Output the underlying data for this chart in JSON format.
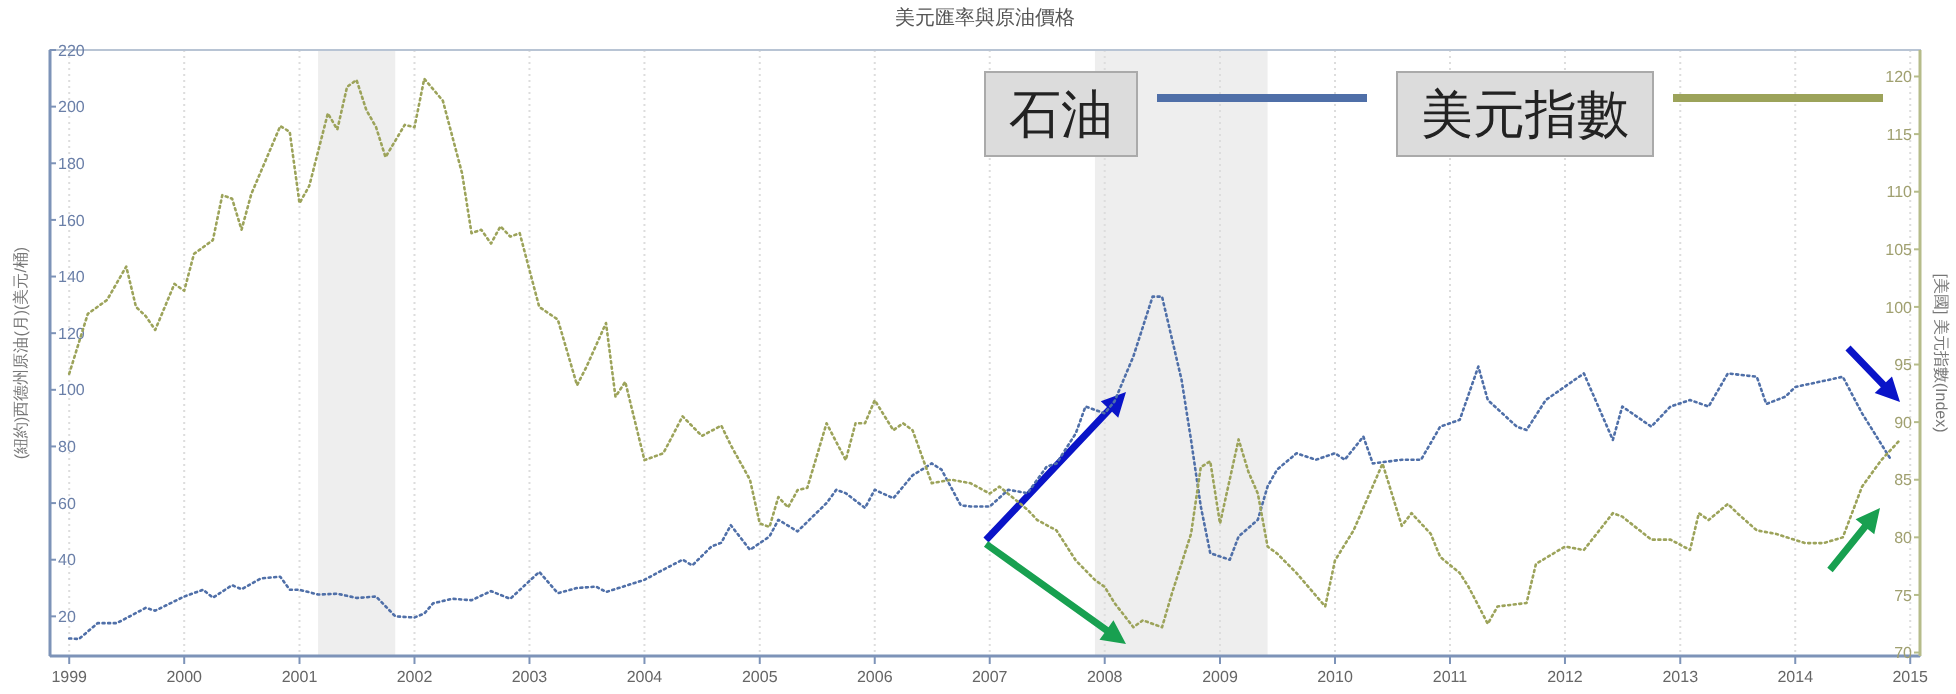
{
  "chart_data": {
    "type": "line",
    "title": "美元匯率與原油價格",
    "ylabel": "(紐約)西德州原油(月)(美元/桶)",
    "y2label": "[美國] 美元指數(Index)",
    "xlim": [
      "1998-11",
      "2015-02"
    ],
    "xticks": [
      "1999",
      "2000",
      "2001",
      "2002",
      "2003",
      "2004",
      "2005",
      "2006",
      "2007",
      "2008",
      "2009",
      "2010",
      "2011",
      "2012",
      "2013",
      "2014",
      "2015"
    ],
    "ylim": [
      6,
      220
    ],
    "yticks": [
      20,
      40,
      60,
      80,
      100,
      120,
      140,
      160,
      180,
      200,
      220
    ],
    "y2lim": [
      69.7,
      122.3
    ],
    "y2ticks": [
      70,
      75,
      80,
      85,
      90,
      95,
      100,
      105,
      110,
      115,
      120
    ],
    "grid": "x",
    "legend": "top",
    "line_style": "dotted",
    "marker": "none",
    "bands": [
      {
        "axis": "x",
        "from": "2001-03",
        "to": "2001-11",
        "color": "#eeeeee"
      },
      {
        "axis": "x",
        "from": "2007-12",
        "to": "2009-06",
        "color": "#eeeeee"
      }
    ],
    "series": [
      {
        "name": "石油",
        "color": "#4f6fa8",
        "x": [
          "1999-01",
          "1999-02",
          "1999-04",
          "1999-06",
          "1999-09",
          "1999-10",
          "2000-01",
          "2000-03",
          "2000-04",
          "2000-06",
          "2000-07",
          "2000-09",
          "2000-11",
          "2000-12",
          "2001-01",
          "2001-03",
          "2001-05",
          "2001-07",
          "2001-09",
          "2001-11",
          "2002-01",
          "2002-02",
          "2002-03",
          "2002-05",
          "2002-07",
          "2002-09",
          "2002-11",
          "2003-02",
          "2003-04",
          "2003-06",
          "2003-08",
          "2003-09",
          "2004-01",
          "2004-03",
          "2004-05",
          "2004-06",
          "2004-08",
          "2004-09",
          "2004-10",
          "2004-12",
          "2005-02",
          "2005-03",
          "2005-05",
          "2005-08",
          "2005-09",
          "2005-10",
          "2005-12",
          "2006-01",
          "2006-03",
          "2006-05",
          "2006-07",
          "2006-08",
          "2006-10",
          "2006-11",
          "2007-01",
          "2007-03",
          "2007-05",
          "2007-07",
          "2007-08",
          "2007-10",
          "2007-11",
          "2008-01",
          "2008-02",
          "2008-04",
          "2008-06",
          "2008-07",
          "2008-09",
          "2008-10",
          "2008-11",
          "2008-12",
          "2009-02",
          "2009-03",
          "2009-05",
          "2009-06",
          "2009-07",
          "2009-09",
          "2009-11",
          "2010-01",
          "2010-02",
          "2010-04",
          "2010-05",
          "2010-08",
          "2010-10",
          "2010-12",
          "2011-02",
          "2011-04",
          "2011-05",
          "2011-08",
          "2011-09",
          "2011-11",
          "2012-03",
          "2012-06",
          "2012-07",
          "2012-10",
          "2012-12",
          "2013-02",
          "2013-04",
          "2013-06",
          "2013-09",
          "2013-10",
          "2013-12",
          "2014-01",
          "2014-06",
          "2014-08",
          "2014-11"
        ],
        "values": [
          12.2,
          12,
          17.6,
          17.6,
          23,
          22,
          27,
          29.4,
          26.6,
          31,
          29.6,
          33.4,
          34,
          29.4,
          29.4,
          27.7,
          28,
          26.5,
          27,
          20,
          19.6,
          21,
          24.6,
          26.2,
          25.7,
          28.9,
          26.2,
          35.7,
          28.2,
          30,
          30.5,
          28.6,
          32.9,
          36.5,
          40,
          38,
          44.7,
          46,
          52.2,
          43.5,
          48.2,
          54.1,
          50,
          60,
          64.7,
          63.5,
          58.3,
          64.7,
          61.7,
          69.8,
          74,
          71.8,
          59.2,
          58.8,
          58.8,
          64.7,
          63.5,
          72.9,
          74,
          84.6,
          94.1,
          91.7,
          95.9,
          111.8,
          132.9,
          132.9,
          103.5,
          82.3,
          58.8,
          42.3,
          40,
          48.2,
          54.1,
          65.9,
          71.8,
          77.6,
          75.3,
          77.6,
          75.3,
          83.5,
          74,
          75.3,
          75.3,
          87,
          89.4,
          108.2,
          96.4,
          87,
          85.8,
          96.4,
          105.8,
          82.3,
          94.1,
          87,
          94.1,
          96.4,
          94.1,
          105.8,
          104.6,
          95,
          97.6,
          101,
          104.6,
          91.7,
          75.3
        ]
      },
      {
        "name": "美元指數",
        "color": "#9ca35a",
        "axis": "y2",
        "x": [
          "1999-01",
          "1999-03",
          "1999-05",
          "1999-07",
          "1999-08",
          "1999-09",
          "1999-10",
          "1999-12",
          "2000-01",
          "2000-02",
          "2000-04",
          "2000-05",
          "2000-06",
          "2000-07",
          "2000-08",
          "2000-11",
          "2000-12",
          "2001-01",
          "2001-02",
          "2001-04",
          "2001-05",
          "2001-06",
          "2001-07",
          "2001-08",
          "2001-09",
          "2001-10",
          "2001-12",
          "2002-01",
          "2002-02",
          "2002-04",
          "2002-06",
          "2002-07",
          "2002-08",
          "2002-09",
          "2002-10",
          "2002-11",
          "2002-12",
          "2003-02",
          "2003-04",
          "2003-06",
          "2003-07",
          "2003-09",
          "2003-10",
          "2003-11",
          "2004-01",
          "2004-03",
          "2004-05",
          "2004-07",
          "2004-09",
          "2004-10",
          "2004-12",
          "2005-01",
          "2005-02",
          "2005-03",
          "2005-04",
          "2005-05",
          "2005-06",
          "2005-08",
          "2005-10",
          "2005-11",
          "2005-12",
          "2006-01",
          "2006-03",
          "2006-04",
          "2006-05",
          "2006-07",
          "2006-09",
          "2006-11",
          "2007-01",
          "2007-02",
          "2007-05",
          "2007-06",
          "2007-08",
          "2007-10",
          "2007-12",
          "2008-01",
          "2008-02",
          "2008-04",
          "2008-05",
          "2008-07",
          "2008-08",
          "2008-10",
          "2008-11",
          "2008-12",
          "2009-01",
          "2009-03",
          "2009-04",
          "2009-05",
          "2009-06",
          "2009-07",
          "2009-09",
          "2009-12",
          "2010-01",
          "2010-03",
          "2010-06",
          "2010-08",
          "2010-09",
          "2010-11",
          "2010-12",
          "2011-02",
          "2011-03",
          "2011-05",
          "2011-06",
          "2011-09",
          "2011-10",
          "2012-01",
          "2012-03",
          "2012-06",
          "2012-07",
          "2012-10",
          "2012-12",
          "2013-02",
          "2013-03",
          "2013-04",
          "2013-06",
          "2013-07",
          "2013-09",
          "2013-11",
          "2014-02",
          "2014-04",
          "2014-06",
          "2014-08",
          "2014-10",
          "2014-12"
        ],
        "values": [
          94.2,
          99.4,
          100.6,
          103.5,
          100,
          99.2,
          98,
          102,
          101.4,
          104.6,
          105.8,
          109.7,
          109.4,
          106.7,
          109.8,
          115.7,
          115.2,
          109,
          110.5,
          116.8,
          115.4,
          119.1,
          119.7,
          117.1,
          115.6,
          113,
          115.8,
          115.6,
          119.8,
          117.9,
          111.6,
          106.4,
          106.7,
          105.5,
          107,
          106.1,
          106.4,
          100,
          98.9,
          93.2,
          94.8,
          98.6,
          92.2,
          93.5,
          86.7,
          87.3,
          90.5,
          88.8,
          89.7,
          88,
          85,
          81.2,
          80.9,
          83.5,
          82.6,
          84.1,
          84.3,
          89.9,
          86.7,
          89.9,
          89.9,
          91.9,
          89.3,
          89.9,
          89.3,
          84.7,
          85,
          84.7,
          83.8,
          84.4,
          82.4,
          81.5,
          80.6,
          78,
          76.3,
          75.7,
          74.3,
          72.2,
          72.8,
          72.2,
          75.1,
          80.3,
          86.1,
          86.6,
          81.2,
          88.5,
          85.7,
          83.8,
          79.2,
          78.6,
          76.9,
          74,
          78,
          80.6,
          86.4,
          81,
          82.1,
          80.3,
          78.3,
          76.9,
          75.7,
          72.5,
          74,
          74.3,
          77.7,
          79.2,
          78.9,
          82.1,
          81.8,
          79.8,
          79.8,
          78.9,
          82.1,
          81.5,
          82.9,
          82.1,
          80.6,
          80.3,
          79.5,
          79.5,
          80,
          84.4,
          86.7,
          88.5
        ]
      }
    ]
  }
}
